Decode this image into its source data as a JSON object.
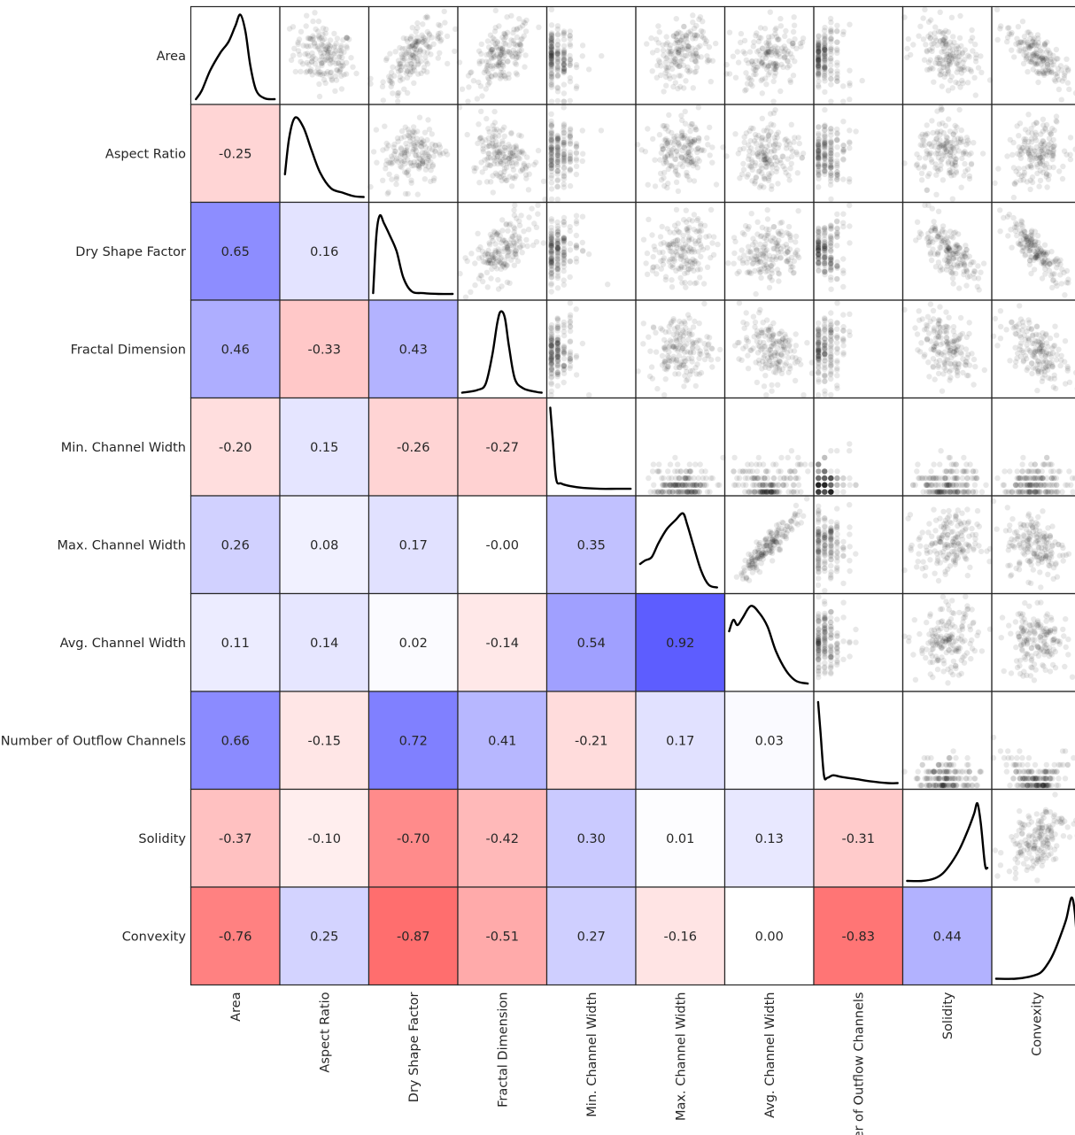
{
  "chart_data": {
    "type": "heatmap",
    "variables": [
      "Area",
      "Aspect Ratio",
      "Dry Shape Factor",
      "Fractal Dimension",
      "Min. Channel Width",
      "Max. Channel Width",
      "Avg. Channel Width",
      "Number of Outflow Channels",
      "Solidity",
      "Convexity"
    ],
    "correlations": [
      [
        1,
        -0.25,
        0.65,
        0.46,
        -0.2,
        0.26,
        0.11,
        0.66,
        -0.37,
        -0.76
      ],
      [
        -0.25,
        1,
        0.16,
        -0.33,
        0.15,
        0.08,
        0.14,
        -0.15,
        -0.1,
        0.25
      ],
      [
        0.65,
        0.16,
        1,
        0.43,
        -0.26,
        0.17,
        0.02,
        0.72,
        -0.7,
        -0.87
      ],
      [
        0.46,
        -0.33,
        0.43,
        1,
        -0.27,
        -0.0,
        -0.14,
        0.41,
        -0.42,
        -0.51
      ],
      [
        -0.2,
        0.15,
        -0.26,
        -0.27,
        1,
        0.35,
        0.54,
        -0.21,
        0.3,
        0.27
      ],
      [
        0.26,
        0.08,
        0.17,
        -0.0,
        0.35,
        1,
        0.92,
        0.17,
        0.01,
        -0.16
      ],
      [
        0.11,
        0.14,
        0.02,
        -0.14,
        0.54,
        0.92,
        1,
        0.03,
        0.13,
        0.0
      ],
      [
        0.66,
        -0.15,
        0.72,
        0.41,
        -0.21,
        0.17,
        0.03,
        1,
        -0.31,
        -0.83
      ],
      [
        -0.37,
        -0.1,
        -0.7,
        -0.42,
        0.3,
        0.01,
        0.13,
        -0.31,
        1,
        0.44
      ],
      [
        -0.76,
        0.25,
        -0.87,
        -0.51,
        0.27,
        -0.16,
        0.0,
        -0.83,
        0.44,
        1
      ]
    ],
    "correlation_labels": [
      [
        "",
        "",
        "",
        "",
        "",
        "",
        "",
        "",
        "",
        ""
      ],
      [
        "-0.25",
        "",
        "",
        "",
        "",
        "",
        "",
        "",
        "",
        ""
      ],
      [
        "0.65",
        "0.16",
        "",
        "",
        "",
        "",
        "",
        "",
        "",
        ""
      ],
      [
        "0.46",
        "-0.33",
        "0.43",
        "",
        "",
        "",
        "",
        "",
        "",
        ""
      ],
      [
        "-0.20",
        "0.15",
        "-0.26",
        "-0.27",
        "",
        "",
        "",
        "",
        "",
        ""
      ],
      [
        "0.26",
        "0.08",
        "0.17",
        "-0.00",
        "0.35",
        "",
        "",
        "",
        "",
        ""
      ],
      [
        "0.11",
        "0.14",
        "0.02",
        "-0.14",
        "0.54",
        "0.92",
        "",
        "",
        "",
        ""
      ],
      [
        "0.66",
        "-0.15",
        "0.72",
        "0.41",
        "-0.21",
        "0.17",
        "0.03",
        "",
        "",
        ""
      ],
      [
        "-0.37",
        "-0.10",
        "-0.70",
        "-0.42",
        "0.30",
        "0.01",
        "0.13",
        "-0.31",
        "",
        ""
      ],
      [
        "-0.76",
        "0.25",
        "-0.87",
        "-0.51",
        "0.27",
        "-0.16",
        "0.00",
        "-0.83",
        "0.44",
        ""
      ]
    ],
    "lower_triangle": "correlation heatmap with value labels",
    "diagonal": "kernel density curves",
    "upper_triangle": "pairwise scatter plots",
    "color_scale": {
      "negative": "#ff6666",
      "zero": "#ffffff",
      "positive": "#5d5dff"
    },
    "kde_profiles": {
      "Area": "unimodal, peak right of center, long left shoulder",
      "Aspect Ratio": "right-skewed, peak at left third",
      "Dry Shape Factor": "strongly right-skewed, peak at far left",
      "Fractal Dimension": "symmetric, narrow central peak",
      "Min. Channel Width": "extreme right skew, spike at far left",
      "Max. Channel Width": "peak near center-right with left shoulder",
      "Avg. Channel Width": "bimodal near left, long right tail",
      "Number of Outflow Channels": "spike at far left, long flat tail",
      "Solidity": "strongly left-skewed, peak at far right",
      "Convexity": "strongly left-skewed, peak at far right"
    }
  }
}
